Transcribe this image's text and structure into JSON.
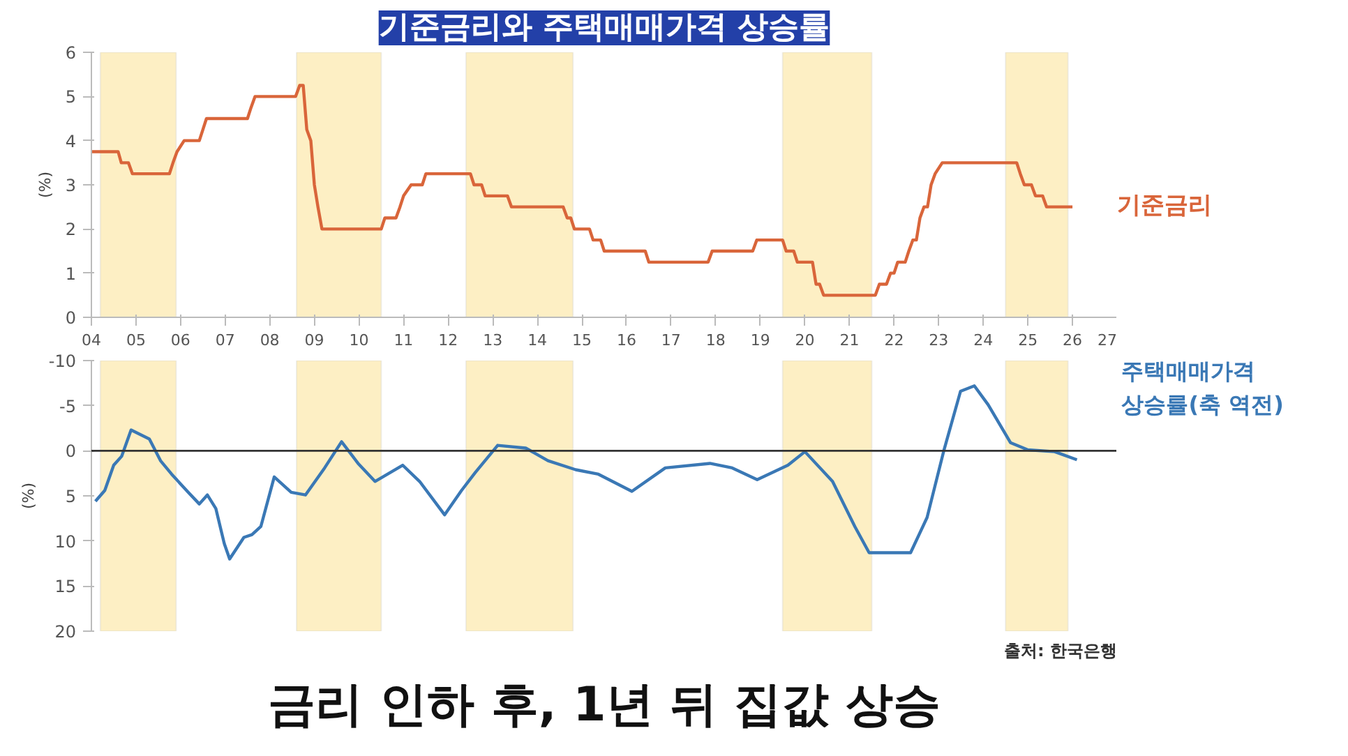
{
  "chart_data": [
    {
      "type": "line",
      "title": "기준금리와 주택매매가격 상승률",
      "ylabel": "(%)",
      "xlim": [
        2004,
        2027
      ],
      "xticks": [
        {
          "value": 2004,
          "label": "04"
        },
        {
          "value": 2005,
          "label": "05"
        },
        {
          "value": 2006,
          "label": "06"
        },
        {
          "value": 2007,
          "label": "07"
        },
        {
          "value": 2008,
          "label": "08"
        },
        {
          "value": 2009,
          "label": "09"
        },
        {
          "value": 2010,
          "label": "10"
        },
        {
          "value": 2011,
          "label": "11"
        },
        {
          "value": 2012,
          "label": "12"
        },
        {
          "value": 2013,
          "label": "13"
        },
        {
          "value": 2014,
          "label": "14"
        },
        {
          "value": 2015,
          "label": "15"
        },
        {
          "value": 2016,
          "label": "16"
        },
        {
          "value": 2017,
          "label": "17"
        },
        {
          "value": 2018,
          "label": "18"
        },
        {
          "value": 2019,
          "label": "19"
        },
        {
          "value": 2020,
          "label": "20"
        },
        {
          "value": 2021,
          "label": "21"
        },
        {
          "value": 2022,
          "label": "22"
        },
        {
          "value": 2023,
          "label": "23"
        },
        {
          "value": 2024,
          "label": "24"
        },
        {
          "value": 2025,
          "label": "25"
        },
        {
          "value": 2026,
          "label": "26"
        },
        {
          "value": 2027,
          "label": "27"
        }
      ],
      "ylim": [
        0,
        6
      ],
      "yticks": [
        0,
        1,
        2,
        3,
        4,
        5,
        6
      ],
      "grid": false,
      "legend": false,
      "bands": [
        {
          "axis": "x",
          "from": 2004.2,
          "to": 2005.9,
          "color": "#fdefc4"
        },
        {
          "axis": "x",
          "from": 2008.6,
          "to": 2010.5,
          "color": "#fdefc4"
        },
        {
          "axis": "x",
          "from": 2012.4,
          "to": 2014.8,
          "color": "#fdefc4"
        },
        {
          "axis": "x",
          "from": 2019.5,
          "to": 2021.5,
          "color": "#fdefc4"
        },
        {
          "axis": "x",
          "from": 2024.5,
          "to": 2025.9,
          "color": "#fdefc4"
        }
      ],
      "series": [
        {
          "name": "기준금리",
          "color": "#d9653a",
          "x": [
            2004.0,
            2004.6,
            2004.67,
            2004.83,
            2004.92,
            2005.75,
            2005.83,
            2005.92,
            2006.08,
            2006.42,
            2006.5,
            2006.58,
            2007.5,
            2007.58,
            2007.67,
            2008.58,
            2008.67,
            2008.75,
            2008.83,
            2008.92,
            2009.0,
            2009.08,
            2009.17,
            2010.5,
            2010.58,
            2010.83,
            2010.92,
            2011.0,
            2011.17,
            2011.42,
            2011.5,
            2012.5,
            2012.58,
            2012.75,
            2012.83,
            2013.33,
            2013.42,
            2014.58,
            2014.67,
            2014.75,
            2014.83,
            2015.17,
            2015.25,
            2015.42,
            2015.5,
            2016.42,
            2016.5,
            2017.83,
            2017.92,
            2018.83,
            2018.92,
            2019.5,
            2019.58,
            2019.75,
            2019.83,
            2020.17,
            2020.25,
            2020.33,
            2020.42,
            2021.58,
            2021.67,
            2021.83,
            2021.92,
            2022.0,
            2022.08,
            2022.25,
            2022.33,
            2022.42,
            2022.5,
            2022.58,
            2022.67,
            2022.75,
            2022.83,
            2022.92,
            2023.08,
            2024.75,
            2024.83,
            2024.92,
            2025.08,
            2025.17,
            2025.33,
            2025.42,
            2026.0
          ],
          "values": [
            3.75,
            3.75,
            3.5,
            3.5,
            3.25,
            3.25,
            3.5,
            3.75,
            4.0,
            4.0,
            4.25,
            4.5,
            4.5,
            4.75,
            5.0,
            5.0,
            5.25,
            5.25,
            4.25,
            4.0,
            3.0,
            2.5,
            2.0,
            2.0,
            2.25,
            2.25,
            2.5,
            2.75,
            3.0,
            3.0,
            3.25,
            3.25,
            3.0,
            3.0,
            2.75,
            2.75,
            2.5,
            2.5,
            2.25,
            2.25,
            2.0,
            2.0,
            1.75,
            1.75,
            1.5,
            1.5,
            1.25,
            1.25,
            1.5,
            1.5,
            1.75,
            1.75,
            1.5,
            1.5,
            1.25,
            1.25,
            0.75,
            0.75,
            0.5,
            0.5,
            0.75,
            0.75,
            1.0,
            1.0,
            1.25,
            1.25,
            1.5,
            1.75,
            1.75,
            2.25,
            2.5,
            2.5,
            3.0,
            3.25,
            3.5,
            3.5,
            3.25,
            3.0,
            3.0,
            2.75,
            2.75,
            2.5,
            2.5
          ]
        }
      ]
    },
    {
      "type": "line",
      "ylabel": "(%)",
      "xlim": [
        2004,
        2027
      ],
      "ylim": [
        20,
        -10
      ],
      "yticks": [
        -10,
        -5,
        0,
        5,
        10,
        15,
        20
      ],
      "tick_labels": "y",
      "grid": false,
      "legend": false,
      "ref_lines": [
        {
          "axis": "y",
          "value": 0,
          "color": "#333333"
        }
      ],
      "bands": [
        {
          "axis": "x",
          "from": 2004.2,
          "to": 2005.9,
          "color": "#fdefc4"
        },
        {
          "axis": "x",
          "from": 2008.6,
          "to": 2010.5,
          "color": "#fdefc4"
        },
        {
          "axis": "x",
          "from": 2012.4,
          "to": 2014.8,
          "color": "#fdefc4"
        },
        {
          "axis": "x",
          "from": 2019.5,
          "to": 2021.5,
          "color": "#fdefc4"
        },
        {
          "axis": "x",
          "from": 2024.5,
          "to": 2025.9,
          "color": "#fdefc4"
        }
      ],
      "annotations": [
        "금리 인하 후, 1년 뒤 집값 상승",
        "출처: 한국은행"
      ],
      "series": [
        {
          "name": "주택매매가격\n상승률(축 역전)",
          "color": "#3a78b5",
          "x": [
            2004.09,
            2004.3,
            2004.5,
            2004.68,
            2004.89,
            2005.3,
            2005.55,
            2005.8,
            2006.17,
            2006.42,
            2006.6,
            2006.79,
            2006.98,
            2007.1,
            2007.42,
            2007.6,
            2007.8,
            2008.1,
            2008.48,
            2008.8,
            2009.23,
            2009.61,
            2009.98,
            2010.36,
            2010.98,
            2011.36,
            2011.92,
            2012.3,
            2012.61,
            2013.11,
            2013.74,
            2014.24,
            2014.86,
            2015.37,
            2016.12,
            2016.87,
            2017.87,
            2018.37,
            2018.93,
            2019.62,
            2020.0,
            2020.62,
            2021.12,
            2021.44,
            2022.37,
            2022.74,
            2023.12,
            2023.49,
            2023.8,
            2024.11,
            2024.61,
            2025.0,
            2025.6,
            2026.1
          ],
          "values": [
            5.6,
            4.4,
            1.6,
            0.6,
            -2.3,
            -1.3,
            1.1,
            2.6,
            4.6,
            5.9,
            4.9,
            6.4,
            10.3,
            12,
            9.6,
            9.3,
            8.4,
            2.9,
            4.6,
            4.9,
            1.9,
            -1.0,
            1.4,
            3.4,
            1.6,
            3.4,
            7.1,
            4.4,
            2.4,
            -0.6,
            -0.3,
            1.1,
            2.1,
            2.6,
            4.5,
            1.9,
            1.4,
            1.9,
            3.2,
            1.6,
            0.1,
            3.4,
            8.4,
            11.3,
            11.3,
            7.4,
            -0.1,
            -6.6,
            -7.2,
            -5.1,
            -0.9,
            -0.1,
            0.1,
            1.0
          ]
        }
      ]
    }
  ]
}
